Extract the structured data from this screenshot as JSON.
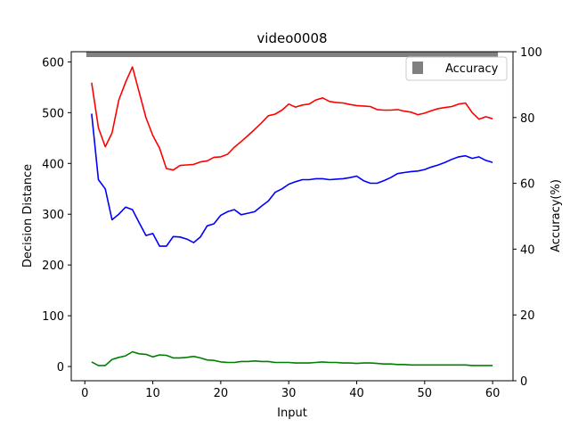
{
  "chart_data": {
    "type": "line",
    "title": "video0008",
    "xlabel": "Input",
    "ylabel": "Decision Distance",
    "ylabel_right": "Accuracy(%)",
    "xlim": [
      -2,
      63
    ],
    "ylim": [
      -28,
      620
    ],
    "ylim_right": [
      0,
      100
    ],
    "xticks": [
      0,
      10,
      20,
      30,
      40,
      50,
      60
    ],
    "yticks": [
      0,
      100,
      200,
      300,
      400,
      500,
      600
    ],
    "yticks_right": [
      0,
      20,
      40,
      60,
      80,
      100
    ],
    "legend": {
      "placement": "top-right",
      "entries": [
        "Accuracy"
      ]
    },
    "grid": false,
    "x": [
      1,
      2,
      3,
      4,
      5,
      6,
      7,
      8,
      9,
      10,
      11,
      12,
      13,
      14,
      15,
      16,
      17,
      18,
      19,
      20,
      21,
      22,
      23,
      24,
      25,
      26,
      27,
      28,
      29,
      30,
      31,
      32,
      33,
      34,
      35,
      36,
      37,
      38,
      39,
      40,
      41,
      42,
      43,
      44,
      45,
      46,
      47,
      48,
      49,
      50,
      51,
      52,
      53,
      54,
      55,
      56,
      57,
      58,
      59,
      60
    ],
    "series": [
      {
        "color": "#ff0000",
        "values": [
          559,
          470,
          433,
          460,
          525,
          560,
          590,
          540,
          490,
          455,
          430,
          390,
          387,
          396,
          397,
          398,
          403,
          405,
          412,
          413,
          418,
          432,
          443,
          455,
          467,
          480,
          494,
          497,
          505,
          517,
          511,
          515,
          517,
          525,
          529,
          522,
          520,
          519,
          516,
          514,
          513,
          512,
          506,
          505,
          505,
          506,
          503,
          501,
          496,
          499,
          504,
          508,
          510,
          512,
          517,
          519,
          500,
          487,
          492,
          488
        ],
        "axis": "left"
      },
      {
        "color": "#0000ff",
        "values": [
          498,
          368,
          350,
          289,
          300,
          314,
          309,
          283,
          258,
          262,
          237,
          237,
          256,
          255,
          251,
          244,
          255,
          277,
          281,
          298,
          305,
          309,
          299,
          302,
          305,
          316,
          326,
          343,
          350,
          359,
          364,
          368,
          368,
          370,
          370,
          368,
          369,
          370,
          372,
          375,
          366,
          361,
          361,
          366,
          372,
          380,
          382,
          384,
          385,
          388,
          393,
          397,
          402,
          408,
          413,
          415,
          410,
          413,
          406,
          402
        ],
        "axis": "left"
      },
      {
        "color": "#008000",
        "values": [
          9,
          2,
          2,
          14,
          18,
          21,
          29,
          25,
          24,
          19,
          23,
          22,
          17,
          17,
          18,
          20,
          17,
          13,
          12,
          9,
          8,
          8,
          10,
          10,
          11,
          10,
          10,
          8,
          8,
          8,
          7,
          7,
          7,
          8,
          9,
          8,
          8,
          7,
          7,
          6,
          7,
          7,
          6,
          5,
          5,
          4,
          4,
          3,
          3,
          3,
          3,
          3,
          3,
          3,
          3,
          3,
          2,
          2,
          2,
          2
        ],
        "axis": "left"
      },
      {
        "name": "Accuracy",
        "color": "#808080",
        "marker": "square",
        "axis": "right",
        "values": [
          100,
          100,
          100,
          100,
          100,
          100,
          100,
          100,
          100,
          100,
          100,
          100,
          100,
          100,
          100,
          100,
          100,
          100,
          100,
          100,
          100,
          100,
          100,
          100,
          100,
          100,
          100,
          100,
          100,
          100,
          100,
          100,
          100,
          100,
          100,
          100,
          100,
          100,
          100,
          100,
          100,
          100,
          100,
          100,
          100,
          100,
          100,
          100,
          100,
          100,
          100,
          100,
          100,
          100,
          100,
          100,
          100,
          100,
          100,
          100
        ]
      }
    ]
  }
}
